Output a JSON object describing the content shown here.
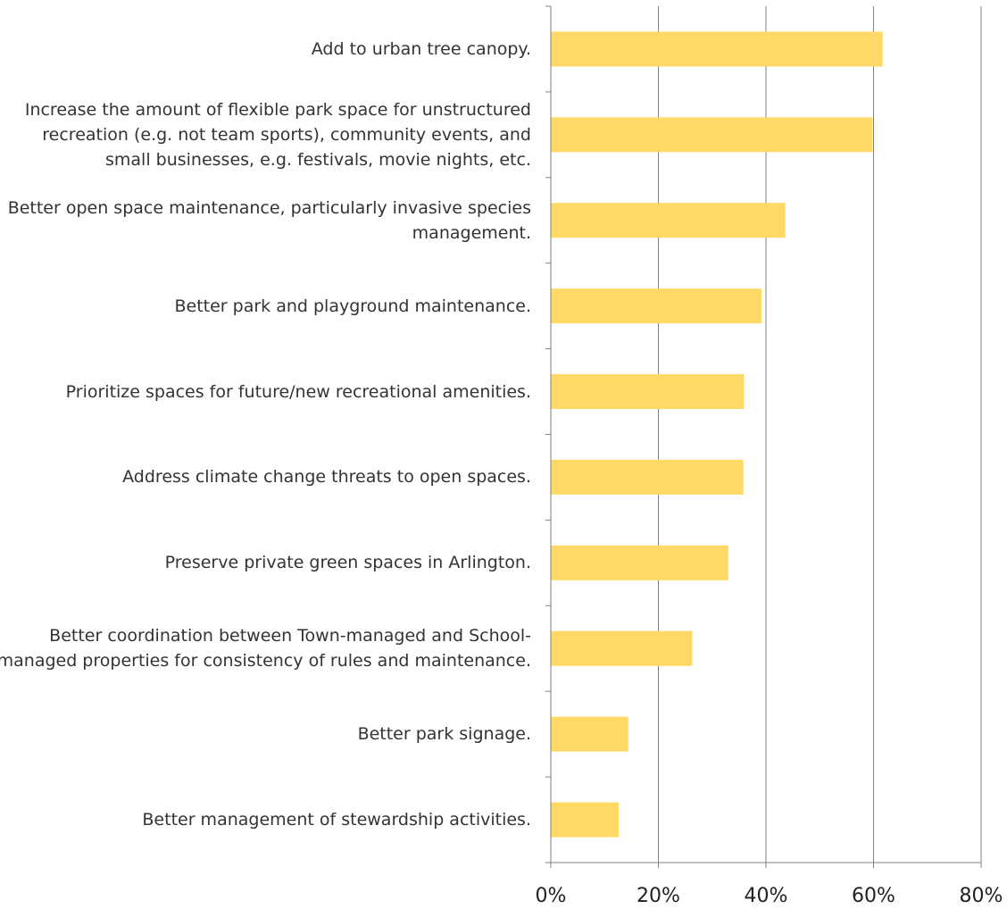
{
  "chart_data": {
    "type": "bar",
    "orientation": "horizontal",
    "title": "",
    "xlabel": "",
    "ylabel": "",
    "categories": [
      "Add to urban tree canopy.",
      "Increase the amount of flexible park space for unstructured recreation (e.g. not team sports), community events, and small businesses, e.g. festivals, movie nights, etc.",
      "Better open space maintenance, particularly invasive species management.",
      "Better park and playground maintenance.",
      "Prioritize spaces for future/new recreational amenities.",
      "Address climate change threats to open spaces.",
      "Preserve private green spaces in Arlington.",
      "Better coordination between Town-managed and School-managed properties for consistency of rules and maintenance.",
      "Better park signage.",
      "Better management of stewardship activities."
    ],
    "values": [
      61.7,
      59.8,
      43.6,
      39.2,
      35.9,
      35.8,
      33.0,
      26.3,
      14.4,
      12.6
    ],
    "xlim": [
      0,
      80
    ],
    "xticks": [
      "0%",
      "20%",
      "40%",
      "60%",
      "80%"
    ],
    "grid": "vertical",
    "legend": "none",
    "bar_color": "#FFD966",
    "grid_color": "#7f7f7f"
  }
}
